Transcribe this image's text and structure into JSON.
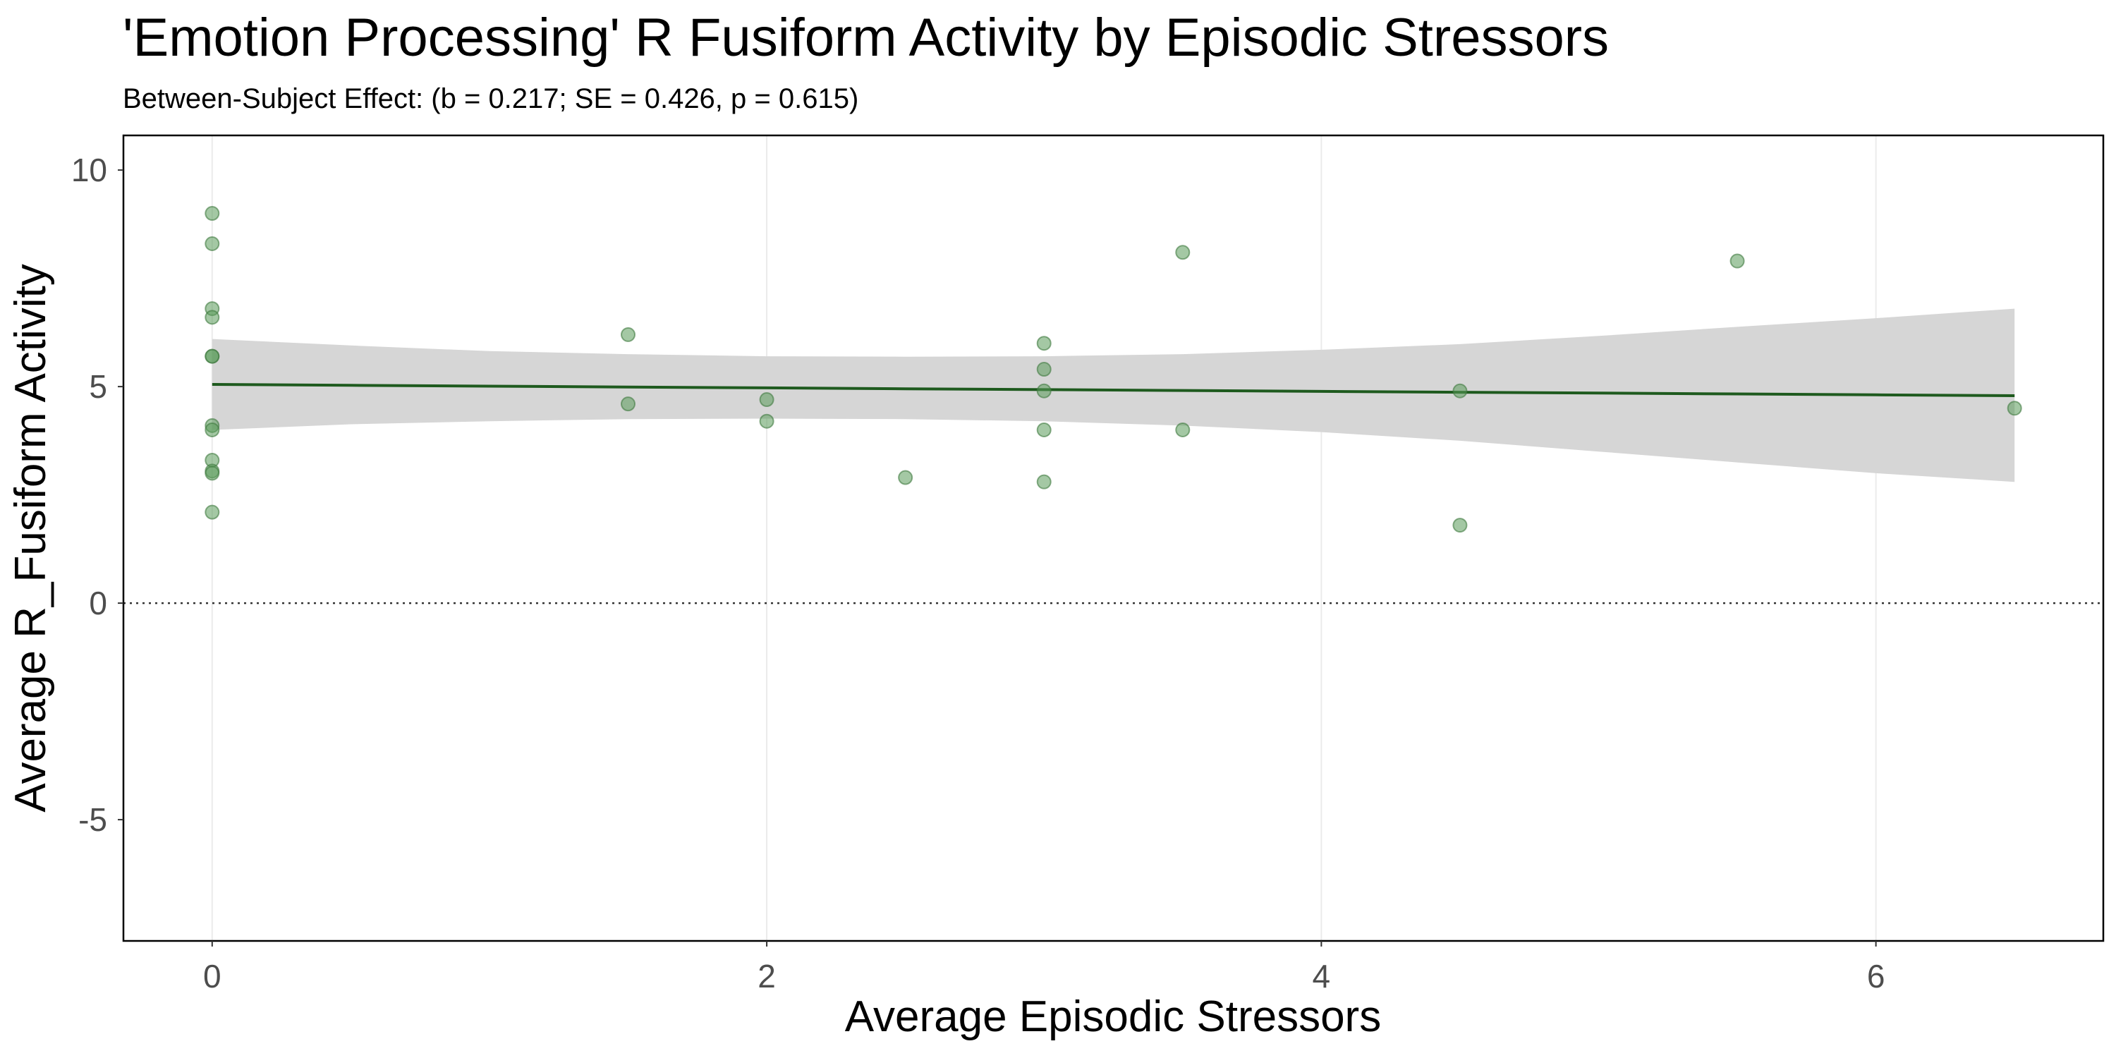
{
  "chart_data": {
    "type": "scatter",
    "title": "'Emotion Processing' R Fusiform Activity by Episodic Stressors",
    "subtitle": "Between-Subject Effect: (b = 0.217; SE = 0.426, p = 0.615)",
    "xlabel": "Average Episodic Stressors",
    "ylabel": "Average R_Fusiform Activity",
    "xlim": [
      -0.32,
      6.82
    ],
    "ylim": [
      -7.8,
      10.8
    ],
    "x_ticks": [
      0,
      2,
      4,
      6
    ],
    "y_ticks": [
      -5,
      0,
      5,
      10
    ],
    "grid": "vertical-major",
    "legend": "none",
    "reference_line": {
      "y": 0,
      "style": "dotted"
    },
    "colors": {
      "points": "#5a9a5a",
      "fit_line": "#1e5a1e",
      "ribbon": "#d6d6d6",
      "grid": "#ebebeb"
    },
    "points": [
      {
        "x": 0,
        "y": 9.0
      },
      {
        "x": 0,
        "y": 8.3
      },
      {
        "x": 0,
        "y": 6.8
      },
      {
        "x": 0,
        "y": 6.6
      },
      {
        "x": 0,
        "y": 5.7
      },
      {
        "x": 0,
        "y": 5.7
      },
      {
        "x": 0,
        "y": 4.1
      },
      {
        "x": 0,
        "y": 4.0
      },
      {
        "x": 0,
        "y": 3.3
      },
      {
        "x": 0,
        "y": 3.05
      },
      {
        "x": 0,
        "y": 3.0
      },
      {
        "x": 0,
        "y": 2.1
      },
      {
        "x": 1.5,
        "y": 6.2
      },
      {
        "x": 1.5,
        "y": 4.6
      },
      {
        "x": 2,
        "y": 4.7
      },
      {
        "x": 2,
        "y": 4.2
      },
      {
        "x": 2.5,
        "y": 2.9
      },
      {
        "x": 3,
        "y": 6.0
      },
      {
        "x": 3,
        "y": 5.4
      },
      {
        "x": 3,
        "y": 4.9
      },
      {
        "x": 3,
        "y": 4.0
      },
      {
        "x": 3,
        "y": 2.8
      },
      {
        "x": 3.5,
        "y": 8.1
      },
      {
        "x": 3.5,
        "y": 4.0
      },
      {
        "x": 4.5,
        "y": 4.9
      },
      {
        "x": 4.5,
        "y": 1.8
      },
      {
        "x": 5.5,
        "y": 7.9
      },
      {
        "x": 6.5,
        "y": 4.5
      }
    ],
    "fit": {
      "x": [
        0,
        0.5,
        1,
        1.5,
        2,
        2.5,
        3,
        3.5,
        4,
        4.5,
        5,
        5.5,
        6,
        6.5
      ],
      "y": [
        5.05,
        5.03,
        5.01,
        4.99,
        4.97,
        4.95,
        4.93,
        4.91,
        4.89,
        4.87,
        4.85,
        4.83,
        4.81,
        4.79
      ],
      "lower": [
        4.0,
        4.13,
        4.2,
        4.25,
        4.26,
        4.25,
        4.2,
        4.1,
        3.95,
        3.75,
        3.5,
        3.25,
        3.0,
        2.8
      ],
      "upper": [
        6.1,
        5.95,
        5.82,
        5.75,
        5.7,
        5.69,
        5.7,
        5.75,
        5.85,
        5.98,
        6.17,
        6.38,
        6.58,
        6.8
      ]
    }
  }
}
